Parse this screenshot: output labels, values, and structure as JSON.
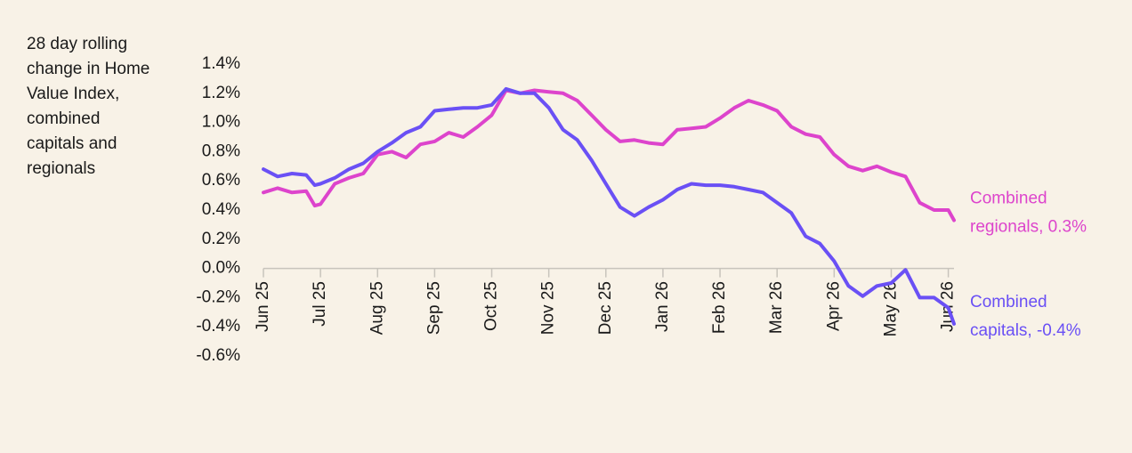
{
  "chart_data": {
    "type": "line",
    "ylabel": [
      "28 day rolling",
      "change in Home",
      "Value Index,",
      "combined",
      "capitals and",
      "regionals"
    ],
    "x": [
      0,
      0.25,
      0.5,
      0.75,
      0.9,
      1,
      1.25,
      1.5,
      1.75,
      2,
      2.25,
      2.5,
      2.75,
      3,
      3.25,
      3.5,
      3.75,
      4,
      4.25,
      4.5,
      4.75,
      5,
      5.25,
      5.5,
      5.75,
      6,
      6.25,
      6.5,
      6.75,
      7,
      7.25,
      7.5,
      7.75,
      8,
      8.25,
      8.5,
      8.75,
      9,
      9.25,
      9.5,
      9.75,
      10,
      10.25,
      10.5,
      10.75,
      11,
      11.25,
      11.5,
      11.75,
      12,
      12.1
    ],
    "series": [
      {
        "name": "Combined regionals",
        "label": [
          "Combined",
          "regionals, 0.3%"
        ],
        "color": "#dd44cc",
        "values": [
          0.52,
          0.55,
          0.52,
          0.53,
          0.43,
          0.44,
          0.58,
          0.62,
          0.65,
          0.78,
          0.8,
          0.76,
          0.85,
          0.87,
          0.93,
          0.9,
          0.97,
          1.05,
          1.22,
          1.2,
          1.22,
          1.21,
          1.2,
          1.15,
          1.05,
          0.95,
          0.87,
          0.88,
          0.86,
          0.85,
          0.95,
          0.96,
          0.97,
          1.03,
          1.1,
          1.15,
          1.12,
          1.08,
          0.97,
          0.92,
          0.9,
          0.78,
          0.7,
          0.67,
          0.7,
          0.66,
          0.63,
          0.45,
          0.4,
          0.4,
          0.33
        ]
      },
      {
        "name": "Combined capitals",
        "label": [
          "Combined",
          "capitals, -0.4%"
        ],
        "color": "#6a50f5",
        "values": [
          0.68,
          0.63,
          0.65,
          0.64,
          0.57,
          0.58,
          0.62,
          0.68,
          0.72,
          0.8,
          0.86,
          0.93,
          0.97,
          1.08,
          1.09,
          1.1,
          1.1,
          1.12,
          1.23,
          1.2,
          1.2,
          1.1,
          0.95,
          0.88,
          0.74,
          0.58,
          0.42,
          0.36,
          0.42,
          0.47,
          0.54,
          0.58,
          0.57,
          0.57,
          0.56,
          0.54,
          0.52,
          0.45,
          0.38,
          0.22,
          0.17,
          0.05,
          -0.12,
          -0.19,
          -0.12,
          -0.1,
          -0.01,
          -0.2,
          -0.2,
          -0.27,
          -0.38
        ]
      }
    ],
    "xlim": [
      0,
      12.1
    ],
    "xticks": [
      {
        "value": 0,
        "label": "Jun 25"
      },
      {
        "value": 1,
        "label": "Jul 25"
      },
      {
        "value": 2,
        "label": "Aug 25"
      },
      {
        "value": 3,
        "label": "Sep 25"
      },
      {
        "value": 4,
        "label": "Oct 25"
      },
      {
        "value": 5,
        "label": "Nov 25"
      },
      {
        "value": 6,
        "label": "Dec 25"
      },
      {
        "value": 7,
        "label": "Jan 26"
      },
      {
        "value": 8,
        "label": "Feb 26"
      },
      {
        "value": 9,
        "label": "Mar 26"
      },
      {
        "value": 10,
        "label": "Apr 26"
      },
      {
        "value": 11,
        "label": "May 26"
      },
      {
        "value": 12,
        "label": "Jun 26"
      }
    ],
    "ylim": [
      -0.6,
      1.4
    ],
    "yticks": [
      {
        "value": -0.6,
        "label": "-0.6%"
      },
      {
        "value": -0.4,
        "label": "-0.4%"
      },
      {
        "value": -0.2,
        "label": "-0.2%"
      },
      {
        "value": 0,
        "label": "0.0%"
      },
      {
        "value": 0.2,
        "label": "0.2%"
      },
      {
        "value": 0.4,
        "label": "0.4%"
      },
      {
        "value": 0.6,
        "label": "0.6%"
      },
      {
        "value": 0.8,
        "label": "0.8%"
      },
      {
        "value": 1.0,
        "label": "1.0%"
      },
      {
        "value": 1.2,
        "label": "1.2%"
      },
      {
        "value": 1.4,
        "label": "1.4%"
      }
    ]
  }
}
